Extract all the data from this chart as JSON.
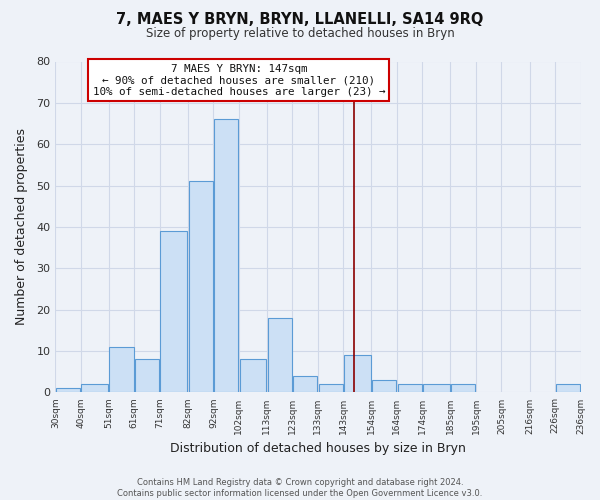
{
  "title": "7, MAES Y BRYN, BRYN, LLANELLI, SA14 9RQ",
  "subtitle": "Size of property relative to detached houses in Bryn",
  "xlabel": "Distribution of detached houses by size in Bryn",
  "ylabel": "Number of detached properties",
  "bar_left_edges": [
    30,
    40,
    51,
    61,
    71,
    82,
    92,
    102,
    113,
    123,
    133,
    143,
    154,
    164,
    174,
    185,
    195,
    205,
    216,
    226
  ],
  "bar_widths": [
    10,
    11,
    10,
    10,
    11,
    10,
    10,
    11,
    10,
    10,
    10,
    11,
    10,
    10,
    11,
    10,
    10,
    11,
    10,
    10
  ],
  "bar_heights": [
    1,
    2,
    11,
    8,
    39,
    51,
    66,
    8,
    18,
    4,
    2,
    9,
    3,
    2,
    2,
    2,
    0,
    0,
    0,
    2
  ],
  "bar_face_color": "#cce0f5",
  "bar_edge_color": "#5b9bd5",
  "vline_x": 147,
  "vline_color": "#8b0000",
  "annotation_line1": "7 MAES Y BRYN: 147sqm",
  "annotation_line2": "← 90% of detached houses are smaller (210)",
  "annotation_line3": "10% of semi-detached houses are larger (23) →",
  "tick_labels": [
    "30sqm",
    "40sqm",
    "51sqm",
    "61sqm",
    "71sqm",
    "82sqm",
    "92sqm",
    "102sqm",
    "113sqm",
    "123sqm",
    "133sqm",
    "143sqm",
    "154sqm",
    "164sqm",
    "174sqm",
    "185sqm",
    "195sqm",
    "205sqm",
    "216sqm",
    "226sqm",
    "236sqm"
  ],
  "ylim": [
    0,
    80
  ],
  "yticks": [
    0,
    10,
    20,
    30,
    40,
    50,
    60,
    70,
    80
  ],
  "grid_color": "#d0d8e8",
  "footer_line1": "Contains HM Land Registry data © Crown copyright and database right 2024.",
  "footer_line2": "Contains public sector information licensed under the Open Government Licence v3.0.",
  "bg_color": "#eef2f8"
}
